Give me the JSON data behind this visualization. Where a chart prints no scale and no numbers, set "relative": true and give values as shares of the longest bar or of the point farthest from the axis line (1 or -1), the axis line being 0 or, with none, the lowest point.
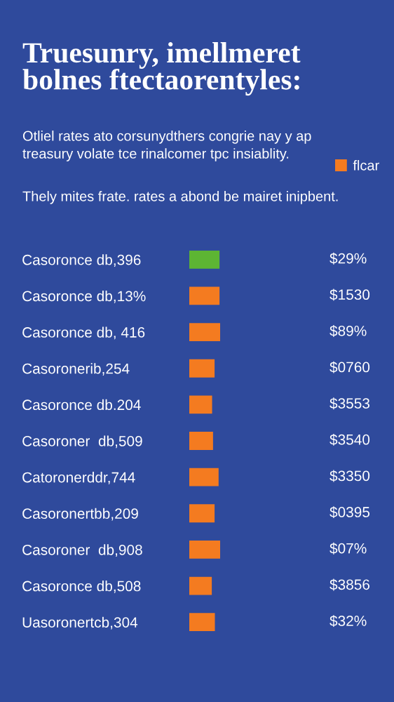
{
  "chart_data": {
    "type": "bar",
    "orientation": "horizontal",
    "relative": true,
    "title": "Truesunry, imellmeret\nbolnes ftectaorentyles:",
    "subtitle": "Otliel rates ato corsunydthers congrie nay y ap\ntreasury volate tce rinalcomer tpc insiablity.",
    "annotations": [
      "Thely mites frate. rates a abond be mairet inipbent.",
      "$29%",
      "$1530",
      "$89%",
      "$0760",
      "$3553",
      "$3540",
      "$3350",
      "$0395",
      "$07%",
      "$3856",
      "$32%"
    ],
    "categories": [
      "Casoronce db,396",
      "Casoronce db,13%",
      "Casoronce db, 416",
      "Casoronerib,254",
      "Casoronce db.204",
      "Casoroner  db,509",
      "Catoronerddr,744",
      "Casoronertbb,209",
      "Casoroner  db,908",
      "Casoronce db,508",
      "Uasoronertcb,304"
    ],
    "series": [
      {
        "name": "flcar",
        "color": "#f47b20",
        "colors": [
          "#5db533",
          "#f47b20",
          "#f47b20",
          "#f47b20",
          "#f47b20",
          "#f47b20",
          "#f47b20",
          "#f47b20",
          "#f47b20",
          "#f47b20",
          "#f47b20"
        ],
        "values": [
          0.98,
          0.98,
          1,
          0.82,
          0.74,
          0.77,
          0.95,
          0.82,
          1,
          0.73,
          0.83
        ]
      }
    ],
    "legend": "top right",
    "grid": false
  }
}
